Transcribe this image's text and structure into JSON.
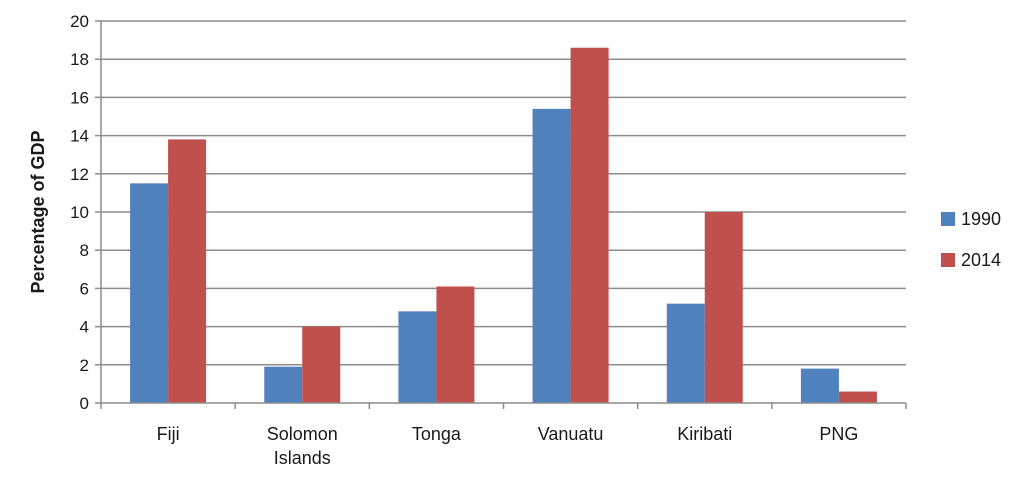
{
  "chart_data": {
    "type": "bar",
    "title": "",
    "xlabel": "",
    "ylabel": "Percentage of GDP",
    "ylim": [
      0,
      20
    ],
    "yticks": [
      0,
      2,
      4,
      6,
      8,
      10,
      12,
      14,
      16,
      18,
      20
    ],
    "grid": true,
    "legend_position": "right",
    "categories": [
      [
        "Fiji"
      ],
      [
        "Solomon",
        "Islands"
      ],
      [
        "Tonga"
      ],
      [
        "Vanuatu"
      ],
      [
        "Kiribati"
      ],
      [
        "PNG"
      ]
    ],
    "series": [
      {
        "name": "1990",
        "color": "#4f81bd",
        "values": [
          11.5,
          1.9,
          4.8,
          15.4,
          5.2,
          1.8
        ]
      },
      {
        "name": "2014",
        "color": "#c0504d",
        "values": [
          13.8,
          4.0,
          6.1,
          18.6,
          10.0,
          0.6
        ]
      }
    ]
  }
}
